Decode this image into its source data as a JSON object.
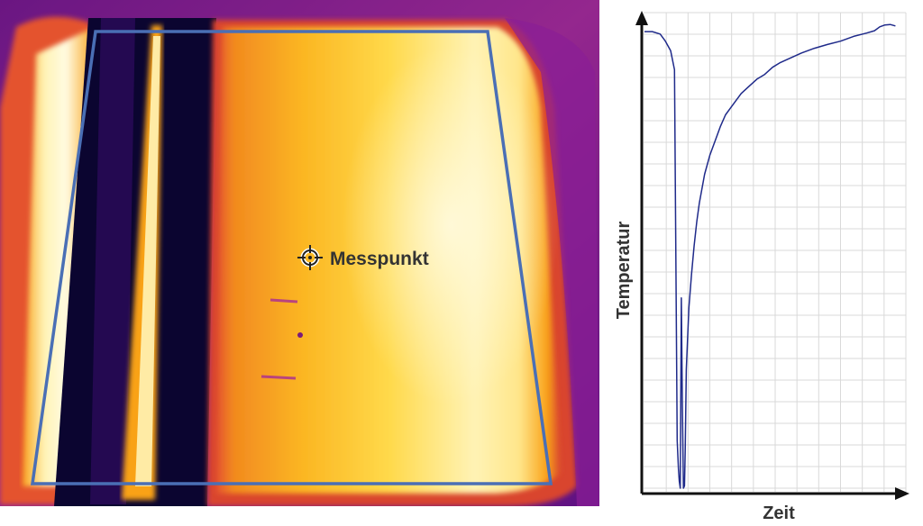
{
  "thermal_image": {
    "marker_label": "Messpunkt",
    "roi_color": "#4a6fb5",
    "palette": [
      "#0b0530",
      "#4b0f8a",
      "#a92a95",
      "#e4522f",
      "#f9a219",
      "#ffe96a",
      "#fffbe2"
    ]
  },
  "chart_data": {
    "type": "line",
    "title": "",
    "xlabel": "Zeit",
    "ylabel": "Temperatur",
    "xlim": [
      0,
      100
    ],
    "ylim": [
      0,
      100
    ],
    "grid": true,
    "tick_labels": "none",
    "line_color": "#1f2a8a",
    "series": [
      {
        "x": [
          0,
          3,
          6,
          8,
          10,
          11.5,
          12.5,
          13,
          13.3,
          13.7,
          14.1,
          14.5,
          14.9,
          15.3,
          15.6,
          16,
          17,
          18,
          19,
          20,
          21,
          23,
          25,
          27,
          29,
          31,
          33,
          35,
          37,
          40,
          43,
          46,
          49,
          52,
          56,
          60,
          65,
          70,
          75,
          80,
          85,
          88,
          90,
          92,
          94,
          96
        ],
        "y": [
          96,
          96,
          95.5,
          94,
          92,
          88,
          10,
          4,
          1.5,
          0,
          40,
          18,
          0,
          0.5,
          8,
          25,
          38,
          45,
          51,
          56,
          60,
          66,
          70,
          73,
          76,
          78.5,
          80,
          81.5,
          83,
          84.5,
          86,
          87,
          88.5,
          89.5,
          90.5,
          91.5,
          92.5,
          93.3,
          94,
          95,
          95.7,
          96.2,
          97,
          97.4,
          97.5,
          97.2
        ]
      }
    ]
  }
}
